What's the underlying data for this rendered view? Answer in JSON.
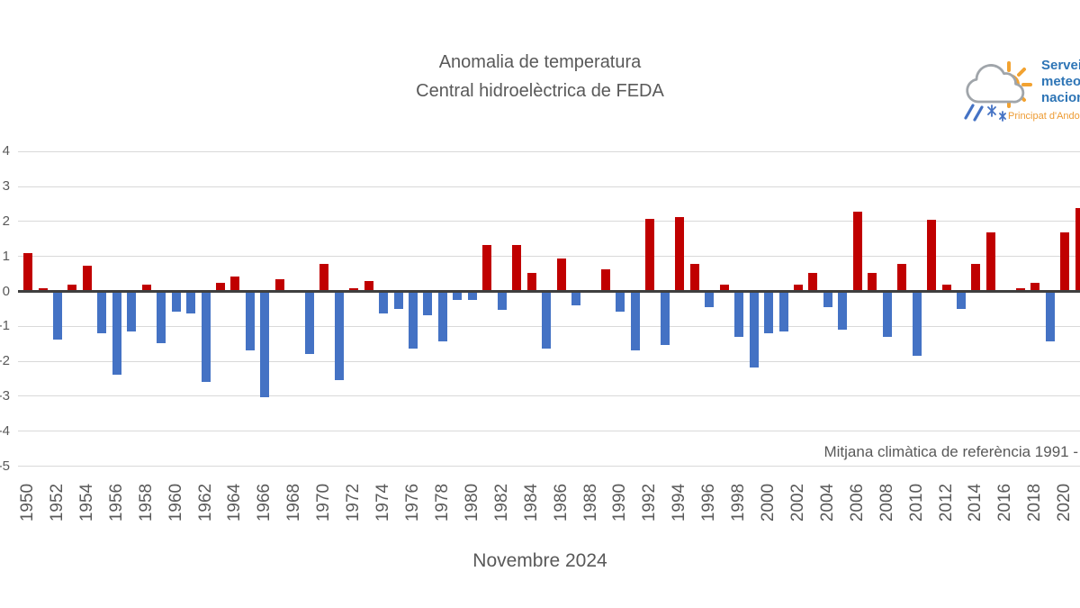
{
  "title": {
    "line1": "Anomalia de temperatura",
    "line2": "Central hidroelèctrica de FEDA"
  },
  "logo": {
    "icon": "sun-cloud-rain-icon",
    "name_line1": "Servei",
    "name_line2": "meteorològic",
    "name_line3": "nacional",
    "subtitle": "Principat d'Andorra"
  },
  "footer": {
    "reference_note": "Mitjana climàtica de referència 1991 -",
    "xaxis_title": "Novembre 2024"
  },
  "chart_data": {
    "type": "bar",
    "title": "Anomalia de temperatura — Central hidroelèctrica de FEDA",
    "subtitle": "Novembre 2024",
    "start_year": 1950,
    "years_range": [
      1950,
      2021
    ],
    "values": [
      1.05,
      0.05,
      -1.35,
      0.15,
      0.7,
      -1.15,
      -2.35,
      -1.1,
      0.15,
      -1.45,
      -0.55,
      -0.6,
      -2.55,
      0.2,
      0.4,
      -1.65,
      -3.0,
      0.3,
      0.0,
      -1.75,
      0.75,
      -2.5,
      0.05,
      0.25,
      -0.6,
      -0.45,
      -1.6,
      -0.65,
      -1.4,
      -0.2,
      -0.2,
      1.3,
      -0.5,
      1.3,
      0.5,
      -1.6,
      0.9,
      -0.35,
      0.0,
      0.6,
      -0.55,
      -1.65,
      2.05,
      -1.5,
      2.1,
      0.75,
      -0.4,
      0.15,
      -1.25,
      -2.15,
      -1.15,
      -1.1,
      0.15,
      0.5,
      -0.4,
      -1.05,
      2.25,
      0.5,
      -1.25,
      0.75,
      -1.8,
      2.0,
      0.15,
      -0.45,
      0.75,
      1.65,
      0.0,
      0.05,
      0.2,
      -1.4,
      1.65,
      2.35
    ],
    "yticks": [
      4,
      3,
      2,
      1,
      0,
      -1,
      -2,
      -3,
      -4,
      -5
    ],
    "ylim": [
      -5,
      4
    ],
    "xtick_labels": [
      "1950",
      "1952",
      "1954",
      "1956",
      "1958",
      "1960",
      "1962",
      "1964",
      "1966",
      "1968",
      "1970",
      "1972",
      "1974",
      "1976",
      "1978",
      "1980",
      "1982",
      "1984",
      "1986",
      "1988",
      "1990",
      "1992",
      "1994",
      "1996",
      "1998",
      "2000",
      "2002",
      "2004",
      "2006",
      "2008",
      "2010",
      "2012",
      "2014",
      "2016",
      "2018",
      "2020"
    ],
    "grid": "horizontal",
    "legend": "none",
    "colors": {
      "positive_bar": "#c00000",
      "negative_bar": "#4472c4",
      "axis_line": "#3f3f3f",
      "gridline": "#d9d9d9",
      "text": "#595959"
    }
  }
}
